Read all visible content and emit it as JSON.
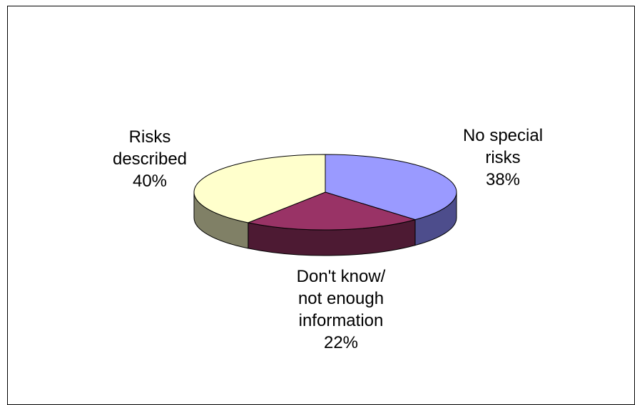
{
  "chart_data": {
    "type": "pie",
    "style": "3d",
    "title": "",
    "slices": [
      {
        "key": "no_special",
        "label_lines": [
          "No special",
          "risks"
        ],
        "percent_label": "38%",
        "value": 38,
        "color": "#9a9aff",
        "side_color": "#4d4d8c"
      },
      {
        "key": "dont_know",
        "label_lines": [
          "Don't know/",
          "not enough",
          "information"
        ],
        "percent_label": "22%",
        "value": 22,
        "color": "#993366",
        "side_color": "#4d1a33"
      },
      {
        "key": "risks_described",
        "label_lines": [
          "Risks",
          "described"
        ],
        "percent_label": "40%",
        "value": 40,
        "color": "#ffffcc",
        "side_color": "#808066"
      }
    ],
    "legend": "none"
  }
}
